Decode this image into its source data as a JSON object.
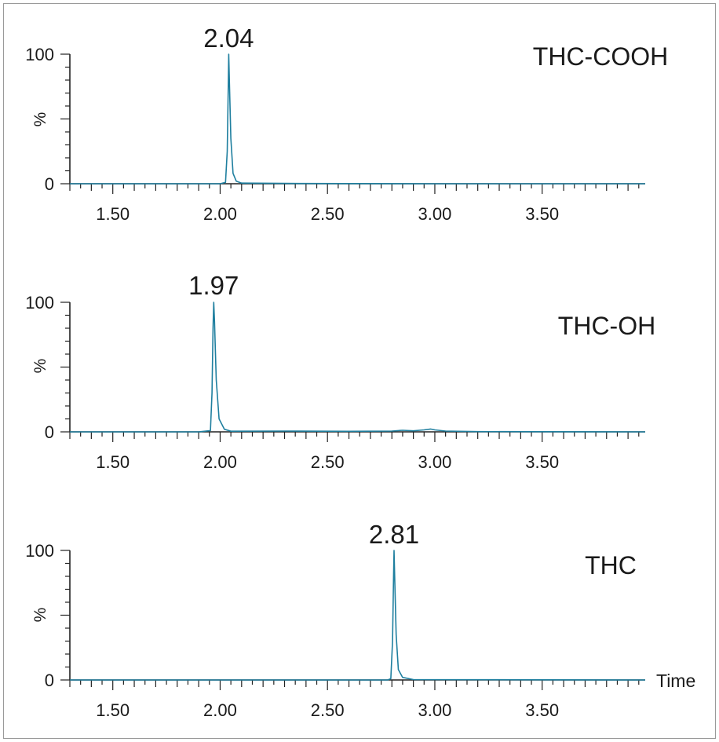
{
  "chart_data": [
    {
      "type": "line",
      "analyte": "THC-COOH",
      "peak_label": "2.04",
      "peak_rt": 2.04,
      "ylabel": "%",
      "xlabel": "",
      "y_ticks": [
        "0",
        "100"
      ],
      "x_ticks": [
        "1.50",
        "2.00",
        "2.50",
        "3.00",
        "3.50"
      ],
      "xlim": [
        1.3,
        3.98
      ],
      "ylim": [
        0,
        100
      ],
      "series": [
        {
          "name": "THC-COOH",
          "x": [
            1.3,
            2.0,
            2.025,
            2.033,
            2.038,
            2.04,
            2.043,
            2.05,
            2.06,
            2.075,
            2.1,
            2.4,
            3.0,
            3.98
          ],
          "y": [
            0,
            0,
            1,
            25,
            75,
            100,
            80,
            35,
            8,
            2,
            0.5,
            0.2,
            0,
            0
          ]
        }
      ]
    },
    {
      "type": "line",
      "analyte": "THC-OH",
      "peak_label": "1.97",
      "peak_rt": 1.97,
      "ylabel": "%",
      "xlabel": "",
      "y_ticks": [
        "0",
        "100"
      ],
      "x_ticks": [
        "1.50",
        "2.00",
        "2.50",
        "3.00",
        "3.50"
      ],
      "xlim": [
        1.3,
        3.98
      ],
      "ylim": [
        0,
        100
      ],
      "series": [
        {
          "name": "THC-OH",
          "x": [
            1.3,
            1.9,
            1.955,
            1.962,
            1.967,
            1.97,
            1.974,
            1.982,
            1.995,
            2.02,
            2.05,
            2.3,
            2.6,
            2.8,
            2.85,
            2.9,
            2.95,
            2.98,
            3.0,
            3.05,
            3.2,
            3.98
          ],
          "y": [
            0,
            0,
            1,
            30,
            80,
            100,
            85,
            40,
            10,
            2,
            0.5,
            0.6,
            0.4,
            0.6,
            1.2,
            0.8,
            1.5,
            2.2,
            1.5,
            0.6,
            0.2,
            0
          ]
        }
      ]
    },
    {
      "type": "line",
      "analyte": "THC",
      "peak_label": "2.81",
      "peak_rt": 2.81,
      "ylabel": "%",
      "xlabel": "Time",
      "y_ticks": [
        "0",
        "100"
      ],
      "x_ticks": [
        "1.50",
        "2.00",
        "2.50",
        "3.00",
        "3.50"
      ],
      "xlim": [
        1.3,
        3.98
      ],
      "ylim": [
        0,
        100
      ],
      "series": [
        {
          "name": "THC",
          "x": [
            1.3,
            2.78,
            2.795,
            2.803,
            2.808,
            2.81,
            2.813,
            2.82,
            2.83,
            2.85,
            2.9,
            3.98
          ],
          "y": [
            0,
            0,
            1,
            30,
            80,
            100,
            80,
            35,
            8,
            2,
            0.3,
            0
          ]
        }
      ]
    }
  ],
  "colors": {
    "trace": "#1f7f9f",
    "axis": "#222222",
    "frame": "#9a9a9a"
  }
}
